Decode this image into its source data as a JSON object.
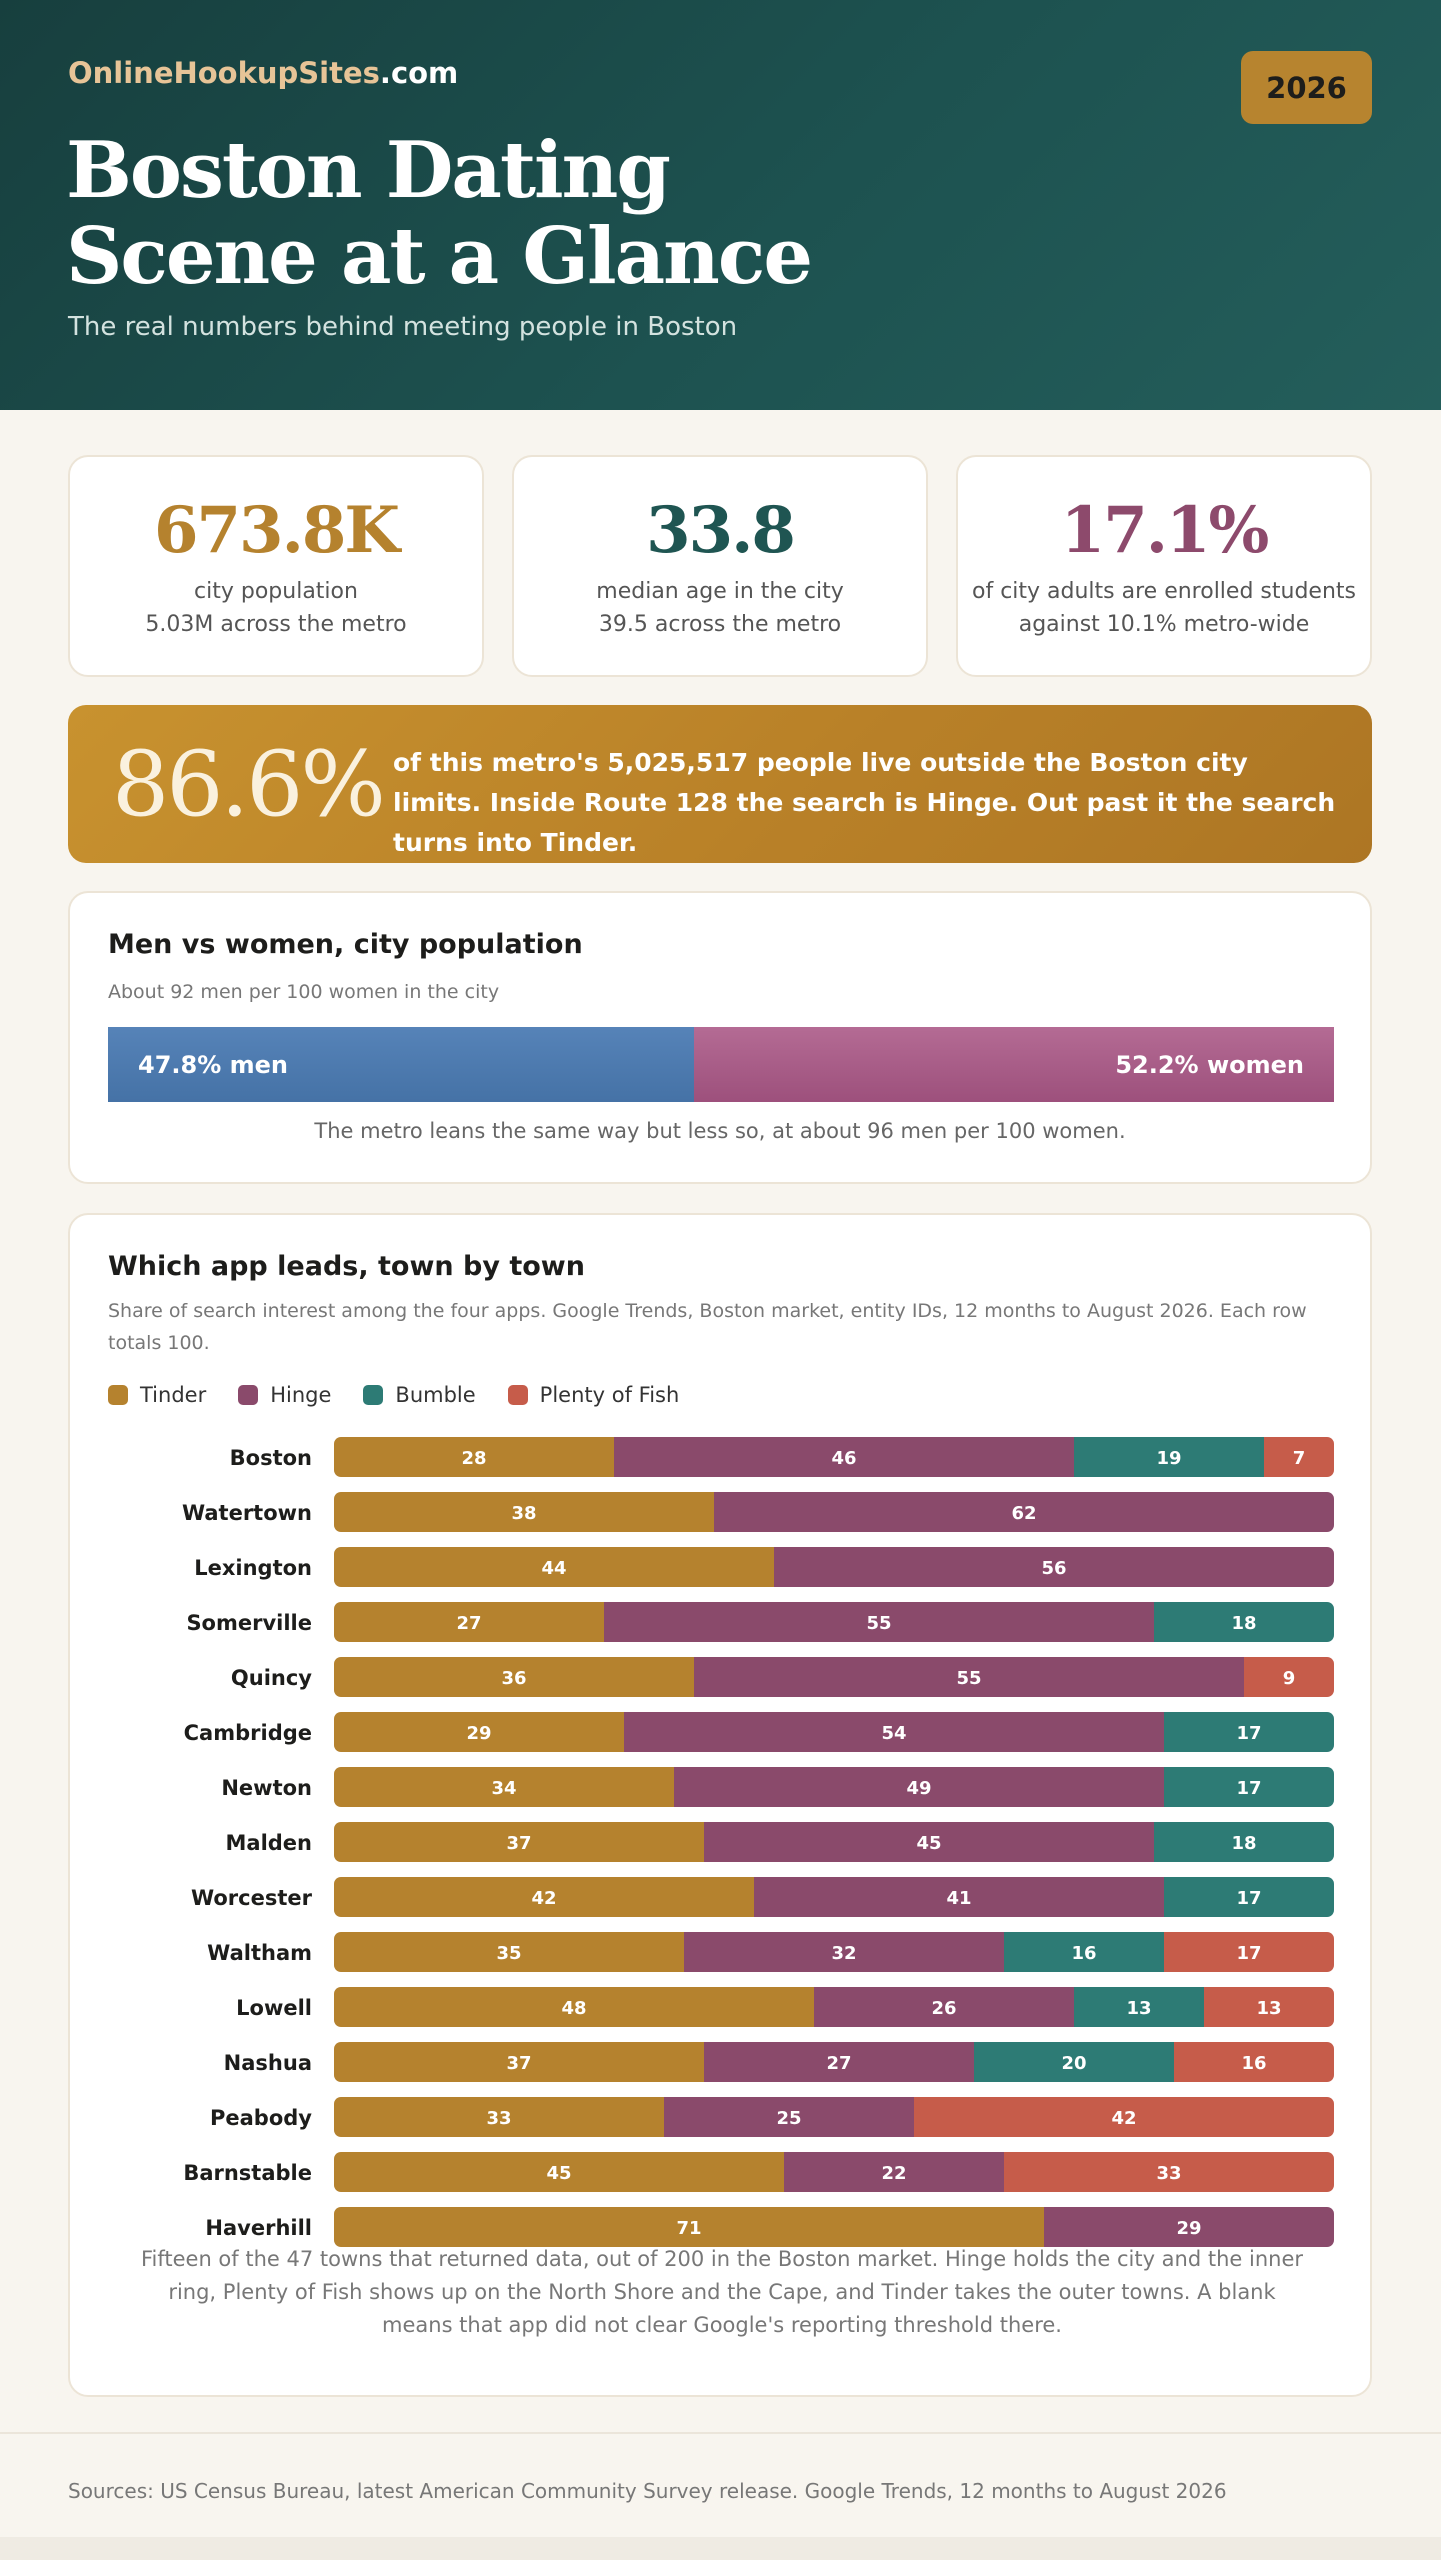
{
  "header": {
    "brand_main": "OnlineHookupSites",
    "brand_suffix": ".com",
    "year": "2026",
    "title_line1": "Boston Dating",
    "title_line2": "Scene at a Glance",
    "subtitle": "The real numbers behind meeting people in Boston"
  },
  "stats": [
    {
      "value": "673.8K",
      "line1": "city population",
      "line2": "5.03M across the metro",
      "color": "#b5822e"
    },
    {
      "value": "33.8",
      "line1": "median age in the city",
      "line2": "39.5 across the metro",
      "color": "#1f5552"
    },
    {
      "value": "17.1%",
      "line1": "of city adults are enrolled students",
      "line2": "against 10.1% metro-wide",
      "color": "#8d4a6c"
    }
  ],
  "banner": {
    "big": "86.6%",
    "text": "of this metro's 5,025,517 people live outside the Boston city limits. Inside Route 128 the search is Hinge. Out past it the search turns into Tinder."
  },
  "gender": {
    "title": "Men vs women, city population",
    "subtitle": "About 92 men per 100 women in the city",
    "men_pct": 47.8,
    "women_pct": 52.2,
    "men_label": "47.8% men",
    "women_label": "52.2% women",
    "note": "The metro leans the same way but less so, at about 96 men per 100 women.",
    "colors": {
      "men": "#4b78ad",
      "women": "#a65985"
    }
  },
  "apps": {
    "title": "Which app leads, town by town",
    "subtitle": "Share of search interest among the four apps. Google Trends, Boston market, entity IDs, 12 months to August 2026. Each row totals 100.",
    "note": "Fifteen of the 47 towns that returned data, out of 200 in the Boston market. Hinge holds the city and the inner ring, Plenty of Fish shows up on the North Shore and the Cape, and Tinder takes the outer towns. A blank means that app did not clear Google's reporting threshold there."
  },
  "chart_data": {
    "type": "bar",
    "orientation": "horizontal",
    "stacked": true,
    "categories": [
      "Boston",
      "Watertown",
      "Lexington",
      "Somerville",
      "Quincy",
      "Cambridge",
      "Newton",
      "Malden",
      "Worcester",
      "Waltham",
      "Lowell",
      "Nashua",
      "Peabody",
      "Barnstable",
      "Haverhill"
    ],
    "series": [
      {
        "name": "Tinder",
        "color": "#b5822e",
        "values": [
          28,
          38,
          44,
          27,
          36,
          29,
          34,
          37,
          42,
          35,
          48,
          37,
          33,
          45,
          71
        ]
      },
      {
        "name": "Hinge",
        "color": "#8a4a6b",
        "values": [
          46,
          62,
          56,
          55,
          55,
          54,
          49,
          45,
          41,
          32,
          26,
          27,
          25,
          22,
          29
        ]
      },
      {
        "name": "Bumble",
        "color": "#2d7b75",
        "values": [
          19,
          null,
          null,
          18,
          null,
          17,
          17,
          18,
          17,
          16,
          13,
          20,
          null,
          null,
          null
        ]
      },
      {
        "name": "Plenty of Fish",
        "color": "#c65c4a",
        "values": [
          7,
          null,
          null,
          null,
          9,
          null,
          null,
          null,
          null,
          17,
          13,
          16,
          42,
          33,
          null
        ]
      }
    ],
    "xlim": [
      0,
      100
    ],
    "legend": "top-left"
  },
  "footer": {
    "sources": "Sources: US Census Bureau, latest American Community Survey release. Google Trends, 12 months to August 2026"
  }
}
